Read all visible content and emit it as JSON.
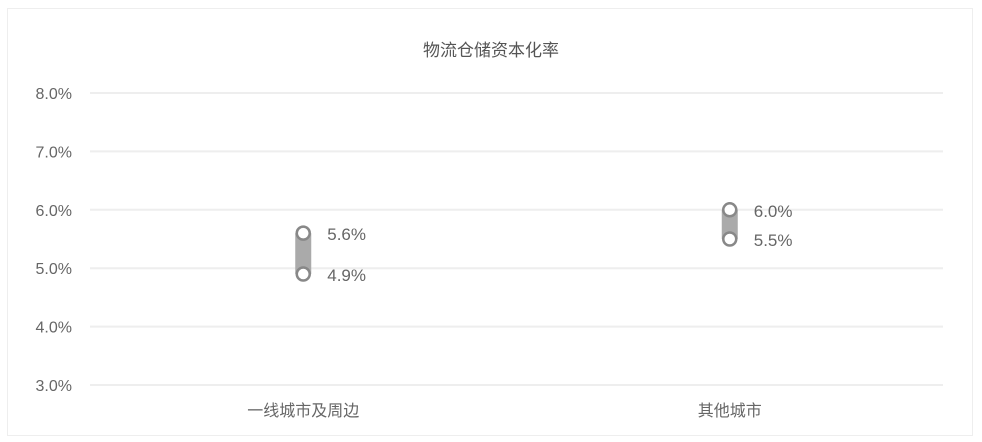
{
  "chart_data": {
    "type": "range",
    "title": "物流仓储资本化率",
    "categories": [
      "一线城市及周边",
      "其他城市"
    ],
    "series": [
      {
        "low": 4.9,
        "high": 5.6,
        "low_label": "4.9%",
        "high_label": "5.6%"
      },
      {
        "low": 5.5,
        "high": 6.0,
        "low_label": "5.5%",
        "high_label": "6.0%"
      }
    ],
    "ylim": [
      3.0,
      8.0
    ],
    "yticks": [
      "3.0%",
      "4.0%",
      "5.0%",
      "6.0%",
      "7.0%",
      "8.0%"
    ],
    "grid": true,
    "colors": {
      "marker": "#888888",
      "bar": "#aaaaaa",
      "grid": "#eeeeee",
      "text": "#666666"
    }
  }
}
